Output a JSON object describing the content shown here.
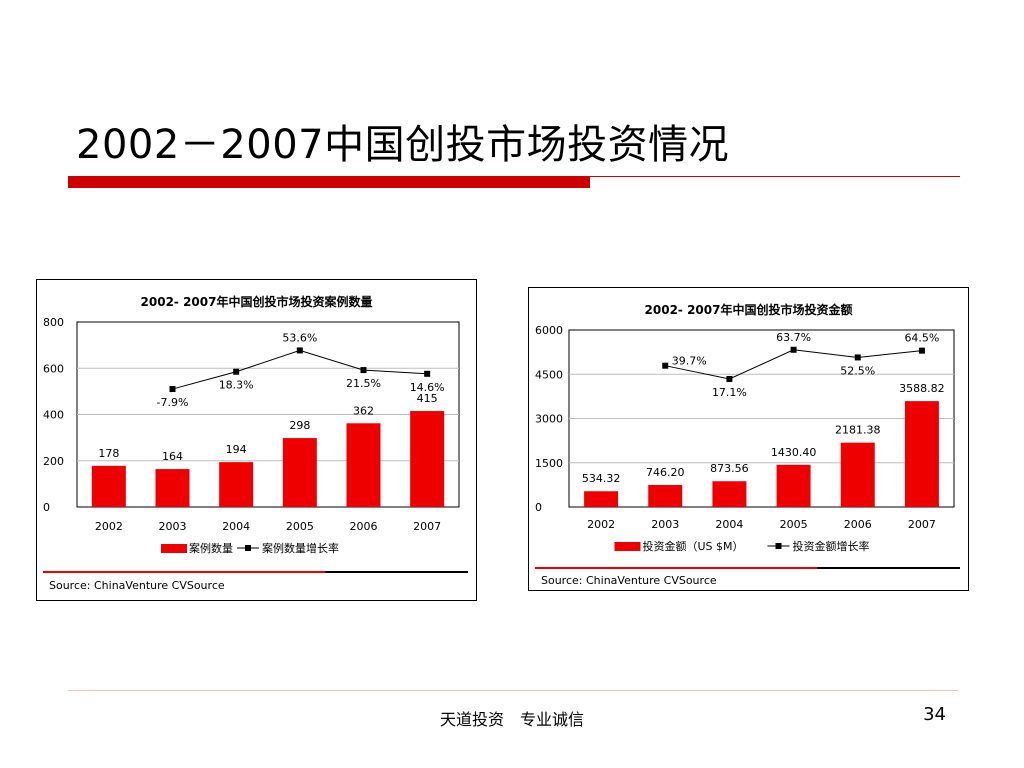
{
  "slide": {
    "title": "2002－2007中国创投市场投资情况",
    "footer": "天道投资　专业诚信",
    "page_number": "34"
  },
  "colors": {
    "accent": "#cc0000",
    "bar": "#ee0000"
  },
  "chart_data": [
    {
      "type": "bar",
      "title": "2002- 2007年中国创投市场投资案例数量",
      "categories": [
        "2002",
        "2003",
        "2004",
        "2005",
        "2006",
        "2007"
      ],
      "ylim": [
        0,
        800
      ],
      "yticks": [
        0,
        200,
        400,
        600,
        800
      ],
      "grid": true,
      "legend_position": "bottom",
      "source": "Source: ChinaVenture CVSource",
      "series": [
        {
          "name": "案例数量",
          "type": "bar",
          "values": [
            178,
            164,
            194,
            298,
            362,
            415
          ],
          "labels": [
            "178",
            "164",
            "194",
            "298",
            "362",
            "415"
          ]
        },
        {
          "name": "案例数量增长率",
          "type": "line",
          "values": [
            null,
            510,
            585,
            677,
            592,
            576
          ],
          "labels": [
            null,
            "-7.9%",
            "18.3%",
            "53.6%",
            "21.5%",
            "14.6%"
          ]
        }
      ]
    },
    {
      "type": "bar",
      "title": "2002- 2007年中国创投市场投资金额",
      "categories": [
        "2002",
        "2003",
        "2004",
        "2005",
        "2006",
        "2007"
      ],
      "ylim": [
        0,
        6000
      ],
      "yticks": [
        0,
        1500,
        3000,
        4500,
        6000
      ],
      "grid": true,
      "legend_position": "bottom",
      "source": "Source: ChinaVenture CVSource",
      "series": [
        {
          "name": "投资金额（US $M）",
          "type": "bar",
          "values": [
            534.32,
            746.2,
            873.56,
            1430.4,
            2181.38,
            3588.82
          ],
          "labels": [
            "534.32",
            "746.20",
            "873.56",
            "1430.40",
            "2181.38",
            "3588.82"
          ]
        },
        {
          "name": "投资金额增长率",
          "type": "line",
          "values": [
            null,
            4790,
            4340,
            5330,
            5070,
            5300
          ],
          "labels": [
            null,
            "39.7%",
            "17.1%",
            "63.7%",
            "52.5%",
            "64.5%"
          ]
        }
      ]
    }
  ]
}
